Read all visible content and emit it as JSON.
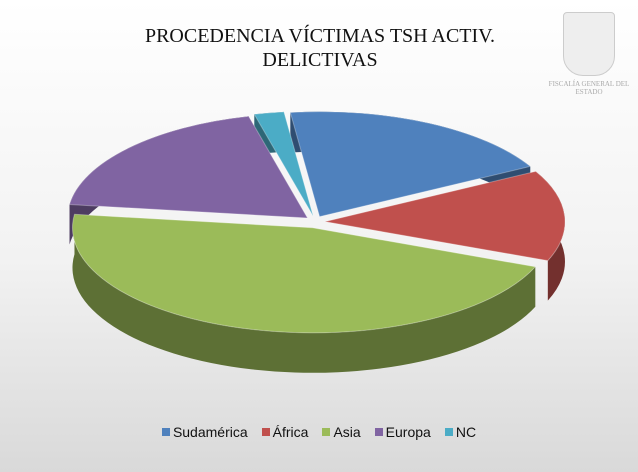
{
  "chart_data": {
    "type": "pie",
    "title": "PROCEDENCIA VÍCTIMAS TSH ACTIV. DELICTIVAS",
    "categories": [
      "Sudamérica",
      "África",
      "Asia",
      "Europa",
      "NC"
    ],
    "values": [
      19,
      14,
      46,
      19,
      2
    ],
    "colors": [
      "#4f81bd",
      "#c0504d",
      "#9bbb59",
      "#8064a2",
      "#4bacc6"
    ],
    "legend": "bottom"
  },
  "logo_text": "FISCALÍA GENERAL DEL ESTADO"
}
